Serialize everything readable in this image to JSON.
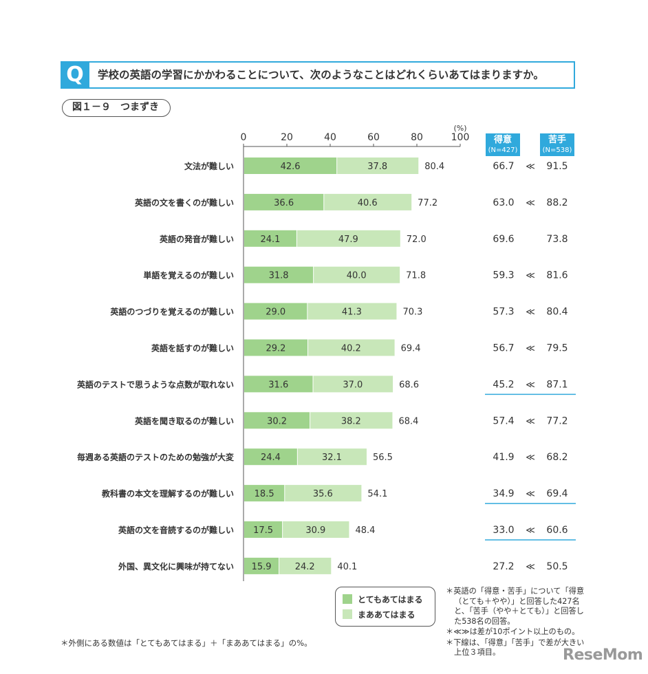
{
  "question": {
    "mark": "Q",
    "text": "学校の英語の学習にかかわることについて、次のようなことはどれくらいあてはまりますか。"
  },
  "figure_label": "図１－９　つまずき",
  "header": {
    "good_label": "得意",
    "good_n": "(N=427)",
    "bad_label": "苦手",
    "bad_n": "(N=538)"
  },
  "legend": {
    "series1": "とてもあてはまる",
    "series2": "まああてはまる"
  },
  "colors": {
    "series1": "#9fd38c",
    "series2": "#c8e7b9",
    "accent": "#30a9dc"
  },
  "notes": {
    "left": "＊外側にある数値は「とてもあてはまる」＋「まああてはまる」の%。",
    "right": [
      "＊英語の「得意・苦手」について「得意（とても＋やや）」と回答した427名と、「苦手（やや＋とても）」と回答した538名の回答。",
      "＊≪≫は差が10ポイント以上のもの。",
      "＊下線は、「得意」「苦手」で差が大きい上位３項目。"
    ]
  },
  "watermark": "ReseMom",
  "chart_data": {
    "type": "bar",
    "orientation": "horizontal",
    "stacked": true,
    "xlim": [
      0,
      100
    ],
    "xticks": [
      "0",
      "20",
      "40",
      "60",
      "80",
      "100"
    ],
    "unit": "(%)",
    "categories": [
      "文法が難しい",
      "英語の文を書くのが難しい",
      "英語の発音が難しい",
      "単語を覚えるのが難しい",
      "英語のつづりを覚えるのが難しい",
      "英語を話すのが難しい",
      "英語のテストで思うような点数が取れない",
      "英語を聞き取るのが難しい",
      "毎週ある英語のテストのための勉強が大変",
      "教科書の本文を理解するのが難しい",
      "英語の文を音読するのが難しい",
      "外国、異文化に興味が持てない"
    ],
    "series": [
      {
        "name": "とてもあてはまる",
        "values": [
          "42.6",
          "36.6",
          "24.1",
          "31.8",
          "29.0",
          "29.2",
          "31.6",
          "30.2",
          "24.4",
          "18.5",
          "17.5",
          "15.9"
        ]
      },
      {
        "name": "まああてはまる",
        "values": [
          "37.8",
          "40.6",
          "47.9",
          "40.0",
          "41.3",
          "40.2",
          "37.0",
          "38.2",
          "32.1",
          "35.6",
          "30.9",
          "24.2"
        ]
      }
    ],
    "totals": [
      "80.4",
      "77.2",
      "72.0",
      "71.8",
      "70.3",
      "69.4",
      "68.6",
      "68.4",
      "56.5",
      "54.1",
      "48.4",
      "40.1"
    ],
    "good": [
      "66.7",
      "63.0",
      "69.6",
      "59.3",
      "57.3",
      "56.7",
      "45.2",
      "57.4",
      "41.9",
      "34.9",
      "33.0",
      "27.2"
    ],
    "bad": [
      "91.5",
      "88.2",
      "73.8",
      "81.6",
      "80.4",
      "79.5",
      "87.1",
      "77.2",
      "68.2",
      "69.4",
      "60.6",
      "50.5"
    ],
    "diff_mark": [
      "≪",
      "≪",
      "",
      "≪",
      "≪",
      "≪",
      "≪",
      "≪",
      "≪",
      "≪",
      "≪",
      "≪"
    ],
    "underlined": [
      false,
      false,
      false,
      false,
      false,
      false,
      true,
      false,
      false,
      true,
      true,
      false
    ]
  }
}
